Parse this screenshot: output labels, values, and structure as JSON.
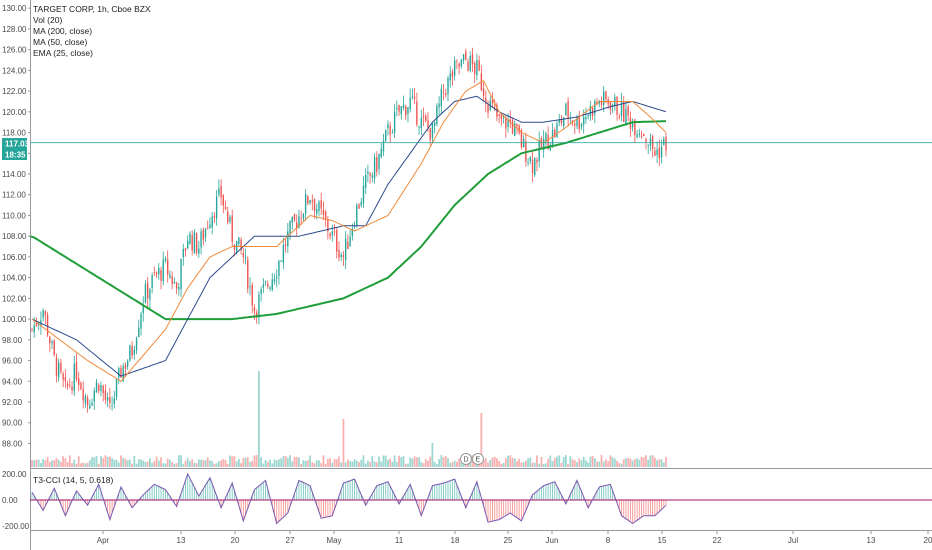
{
  "legend": {
    "symbol": "TARGET CORP, 1h, Cboe BZX",
    "vol": "Vol (20)",
    "ma200": "MA (200, close)",
    "ma50": "MA (50, close)",
    "ema25": "EMA (25, close)",
    "indicator": "T3-CCI (14, 5, 0.618)"
  },
  "badges": {
    "price": "117.03",
    "time": "18:35"
  },
  "events": [
    "D",
    "E"
  ],
  "colors": {
    "up": "#26a69a",
    "down": "#ef5350",
    "ma200": "#1f9e3a",
    "ma50": "#2c4a8c",
    "ema25": "#f08a3c",
    "last_price_line": "#26a69a",
    "cci_line": "#7b57b0",
    "zero_line": "#a01060"
  },
  "chart_data": [
    {
      "type": "candlestick",
      "title": "TARGET CORP, 1h, Cboe BZX",
      "ylim": [
        86.5,
        130.5
      ],
      "y_ticks": [
        "130.00",
        "128.00",
        "126.00",
        "124.00",
        "122.00",
        "120.00",
        "118.00",
        "116.00",
        "114.00",
        "112.00",
        "110.00",
        "108.00",
        "106.00",
        "104.00",
        "102.00",
        "100.00",
        "98.00",
        "96.00",
        "94.00",
        "92.00",
        "90.00",
        "88.00"
      ],
      "x_ticks": [
        "Apr",
        "13",
        "20",
        "27",
        "May",
        "11",
        "18",
        "25",
        "Jun",
        "8",
        "15",
        "22",
        "Jul",
        "13",
        "20"
      ],
      "last_price": 117.03,
      "close_path": [
        [
          0,
          99
        ],
        [
          5,
          101
        ],
        [
          10,
          96
        ],
        [
          15,
          93
        ],
        [
          20,
          95
        ],
        [
          25,
          92
        ],
        [
          30,
          94
        ],
        [
          35,
          91
        ],
        [
          40,
          95
        ],
        [
          45,
          97
        ],
        [
          50,
          102
        ],
        [
          55,
          104
        ],
        [
          60,
          105
        ],
        [
          65,
          103
        ],
        [
          70,
          108
        ],
        [
          75,
          107
        ],
        [
          80,
          110
        ],
        [
          85,
          112
        ],
        [
          90,
          108
        ],
        [
          95,
          106
        ],
        [
          100,
          101
        ],
        [
          105,
          103
        ],
        [
          110,
          105
        ],
        [
          115,
          108
        ],
        [
          120,
          110
        ],
        [
          125,
          112
        ],
        [
          130,
          110
        ],
        [
          135,
          108
        ],
        [
          140,
          106
        ],
        [
          145,
          110
        ],
        [
          150,
          113
        ],
        [
          155,
          115
        ],
        [
          160,
          118
        ],
        [
          165,
          120
        ],
        [
          170,
          121
        ],
        [
          175,
          119
        ],
        [
          180,
          118
        ],
        [
          185,
          122
        ],
        [
          190,
          124
        ],
        [
          195,
          125
        ],
        [
          200,
          124
        ],
        [
          205,
          121
        ],
        [
          210,
          119
        ],
        [
          215,
          119
        ],
        [
          220,
          117
        ],
        [
          225,
          115
        ],
        [
          230,
          117
        ],
        [
          235,
          118
        ],
        [
          240,
          120
        ],
        [
          245,
          119
        ],
        [
          250,
          120
        ],
        [
          255,
          121
        ],
        [
          260,
          121
        ],
        [
          265,
          120
        ],
        [
          270,
          119
        ],
        [
          275,
          118
        ],
        [
          280,
          116
        ],
        [
          285,
          117
        ]
      ],
      "series": [
        {
          "name": "MA (200, close)",
          "values": [
            [
              0,
              108
            ],
            [
              30,
              104
            ],
            [
              60,
              100
            ],
            [
              90,
              100
            ],
            [
              110,
              100.5
            ],
            [
              140,
              102
            ],
            [
              160,
              104
            ],
            [
              175,
              107
            ],
            [
              190,
              111
            ],
            [
              205,
              114
            ],
            [
              220,
              116
            ],
            [
              240,
              117
            ],
            [
              255,
              118
            ],
            [
              270,
              119
            ],
            [
              285,
              119.1
            ]
          ]
        },
        {
          "name": "MA (50, close)",
          "values": [
            [
              0,
              100
            ],
            [
              20,
              98
            ],
            [
              40,
              94.5
            ],
            [
              60,
              96
            ],
            [
              80,
              104
            ],
            [
              100,
              108
            ],
            [
              120,
              108
            ],
            [
              140,
              109
            ],
            [
              150,
              109
            ],
            [
              160,
              113
            ],
            [
              170,
              116
            ],
            [
              180,
              119
            ],
            [
              190,
              121
            ],
            [
              200,
              121.5
            ],
            [
              210,
              120
            ],
            [
              220,
              119
            ],
            [
              230,
              119
            ],
            [
              245,
              119.5
            ],
            [
              260,
              120.5
            ],
            [
              270,
              121
            ],
            [
              285,
              120
            ]
          ]
        },
        {
          "name": "EMA (25, close)",
          "values": [
            [
              0,
              100
            ],
            [
              25,
              96
            ],
            [
              40,
              94
            ],
            [
              60,
              99
            ],
            [
              70,
              103
            ],
            [
              80,
              106
            ],
            [
              90,
              107
            ],
            [
              100,
              107
            ],
            [
              110,
              107
            ],
            [
              125,
              110
            ],
            [
              135,
              109.5
            ],
            [
              145,
              108.5
            ],
            [
              160,
              110
            ],
            [
              175,
              115
            ],
            [
              185,
              119
            ],
            [
              195,
              122
            ],
            [
              203,
              123
            ],
            [
              210,
              120
            ],
            [
              220,
              118
            ],
            [
              230,
              117
            ],
            [
              240,
              118.5
            ],
            [
              255,
              121
            ],
            [
              270,
              121
            ],
            [
              278,
              119.5
            ],
            [
              285,
              118
            ]
          ]
        }
      ],
      "volume": {
        "spikes": [
          [
            102,
            16
          ],
          [
            140,
            8
          ],
          [
            202,
            9
          ],
          [
            180,
            4
          ]
        ]
      }
    },
    {
      "type": "line",
      "title": "T3-CCI (14, 5, 0.618)",
      "ylim": [
        -230,
        230
      ],
      "y_ticks": [
        "200.00",
        "0.00",
        "-200.00"
      ],
      "values": [
        [
          0,
          60
        ],
        [
          5,
          -80
        ],
        [
          10,
          90
        ],
        [
          15,
          -120
        ],
        [
          20,
          70
        ],
        [
          25,
          -40
        ],
        [
          30,
          120
        ],
        [
          35,
          -150
        ],
        [
          40,
          100
        ],
        [
          45,
          -60
        ],
        [
          50,
          40
        ],
        [
          55,
          120
        ],
        [
          60,
          80
        ],
        [
          65,
          -50
        ],
        [
          70,
          200
        ],
        [
          75,
          30
        ],
        [
          80,
          170
        ],
        [
          85,
          -60
        ],
        [
          90,
          130
        ],
        [
          95,
          -160
        ],
        [
          100,
          80
        ],
        [
          105,
          150
        ],
        [
          110,
          -180
        ],
        [
          115,
          -100
        ],
        [
          120,
          150
        ],
        [
          125,
          110
        ],
        [
          130,
          -140
        ],
        [
          135,
          -120
        ],
        [
          140,
          130
        ],
        [
          145,
          160
        ],
        [
          150,
          -40
        ],
        [
          155,
          110
        ],
        [
          160,
          140
        ],
        [
          165,
          -30
        ],
        [
          170,
          120
        ],
        [
          175,
          -120
        ],
        [
          180,
          110
        ],
        [
          185,
          130
        ],
        [
          190,
          160
        ],
        [
          195,
          -60
        ],
        [
          200,
          140
        ],
        [
          205,
          -170
        ],
        [
          210,
          -150
        ],
        [
          215,
          -100
        ],
        [
          220,
          -160
        ],
        [
          225,
          40
        ],
        [
          230,
          110
        ],
        [
          235,
          140
        ],
        [
          240,
          -30
        ],
        [
          245,
          150
        ],
        [
          250,
          -60
        ],
        [
          255,
          100
        ],
        [
          260,
          120
        ],
        [
          265,
          -120
        ],
        [
          270,
          -180
        ],
        [
          275,
          -120
        ],
        [
          280,
          -120
        ],
        [
          285,
          -40
        ]
      ]
    }
  ]
}
